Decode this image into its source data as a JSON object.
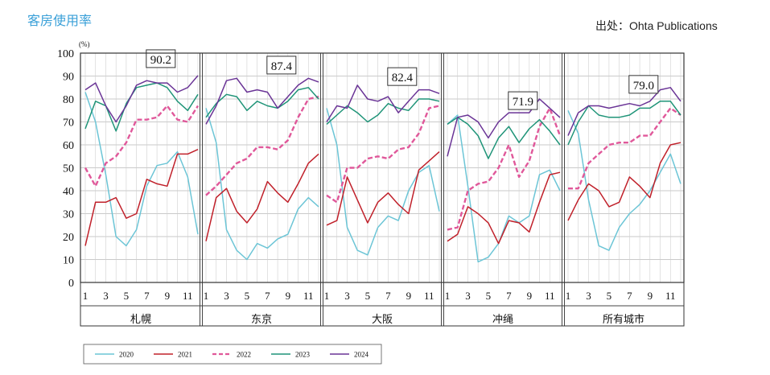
{
  "page": {
    "title": "客房使用率",
    "source": "出处：Ohta Publications"
  },
  "chart_data": {
    "type": "line",
    "unit_label": "(%)",
    "ylim": [
      0,
      100
    ],
    "yticks": [
      0,
      10,
      20,
      30,
      40,
      50,
      60,
      70,
      80,
      90,
      100
    ],
    "month_ticks": [
      "1",
      "3",
      "5",
      "7",
      "9",
      "11"
    ],
    "grid": true,
    "legend_placement": "bottom-left",
    "series_colors": {
      "2020": "#6cc5d6",
      "2021": "#c0202a",
      "2022": "#e0589a",
      "2023": "#1f9478",
      "2024": "#6a3496"
    },
    "series_styles": {
      "2022": "dashed"
    },
    "legend": [
      "2020",
      "2021",
      "2022",
      "2023",
      "2024"
    ],
    "panels": [
      {
        "name": "札幌",
        "highlight": "90.2",
        "series": [
          {
            "name": "2020",
            "values": [
              83,
              70,
              47,
              20,
              16,
              23,
              42,
              51,
              52,
              57,
              46,
              21
            ]
          },
          {
            "name": "2021",
            "values": [
              16,
              35,
              35,
              37,
              28,
              30,
              45,
              43,
              42,
              56,
              56,
              58
            ]
          },
          {
            "name": "2022",
            "values": [
              50,
              42,
              52,
              55,
              61,
              71,
              71,
              72,
              77,
              71,
              70,
              77
            ]
          },
          {
            "name": "2023",
            "values": [
              67,
              79,
              77,
              66,
              78,
              85,
              86,
              87,
              85,
              79,
              75,
              82
            ]
          },
          {
            "name": "2024",
            "values": [
              84,
              87,
              77,
              70,
              77,
              86,
              88,
              87,
              87,
              83,
              85,
              90.2
            ]
          }
        ]
      },
      {
        "name": "东京",
        "highlight": "87.4",
        "series": [
          {
            "name": "2020",
            "values": [
              76,
              61,
              23,
              14,
              10,
              17,
              15,
              19,
              21,
              32,
              37,
              33
            ]
          },
          {
            "name": "2021",
            "values": [
              18,
              37,
              41,
              31,
              26,
              32,
              44,
              39,
              35,
              43,
              52,
              56
            ]
          },
          {
            "name": "2022",
            "values": [
              38,
              42,
              47,
              52,
              54,
              59,
              59,
              58,
              62,
              72,
              80,
              81
            ]
          },
          {
            "name": "2023",
            "values": [
              72,
              78,
              82,
              81,
              75,
              79,
              77,
              76,
              79,
              84,
              85,
              80
            ]
          },
          {
            "name": "2024",
            "values": [
              69,
              77,
              88,
              89,
              83,
              84,
              83,
              76,
              81,
              86,
              89,
              87.4
            ]
          }
        ]
      },
      {
        "name": "大阪",
        "highlight": "82.4",
        "series": [
          {
            "name": "2020",
            "values": [
              76,
              60,
              24,
              14,
              12,
              24,
              29,
              27,
              40,
              48,
              51,
              31
            ]
          },
          {
            "name": "2021",
            "values": [
              25,
              27,
              46,
              36,
              26,
              35,
              39,
              34,
              30,
              49,
              53,
              57
            ]
          },
          {
            "name": "2022",
            "values": [
              38,
              35,
              50,
              50,
              54,
              55,
              54,
              58,
              59,
              65,
              76,
              77
            ]
          },
          {
            "name": "2023",
            "values": [
              69,
              73,
              77,
              74,
              70,
              73,
              78,
              76,
              75,
              80,
              80,
              79
            ]
          },
          {
            "name": "2024",
            "values": [
              70,
              77,
              76,
              86,
              80,
              79,
              81,
              74,
              79,
              84,
              84,
              82.4
            ]
          }
        ]
      },
      {
        "name": "冲绳",
        "highlight": "71.9",
        "series": [
          {
            "name": "2020",
            "values": [
              69,
              73,
              42,
              9,
              11,
              17,
              29,
              26,
              29,
              47,
              49,
              40
            ]
          },
          {
            "name": "2021",
            "values": [
              18,
              21,
              33,
              30,
              26,
              17,
              27,
              26,
              22,
              35,
              47,
              48
            ]
          },
          {
            "name": "2022",
            "values": [
              23,
              24,
              40,
              43,
              44,
              50,
              60,
              46,
              53,
              68,
              76,
              64
            ]
          },
          {
            "name": "2023",
            "values": [
              69,
              72,
              69,
              64,
              54,
              63,
              68,
              61,
              67,
              71,
              66,
              60
            ]
          },
          {
            "name": "2024",
            "values": [
              55,
              72,
              73,
              70,
              63,
              70,
              74,
              74,
              74,
              80,
              76,
              71.9
            ]
          }
        ]
      },
      {
        "name": "所有城市",
        "highlight": "79.0",
        "series": [
          {
            "name": "2020",
            "values": [
              75,
              65,
              36,
              16,
              14,
              24,
              30,
              34,
              40,
              48,
              56,
              43
            ]
          },
          {
            "name": "2021",
            "values": [
              27,
              36,
              43,
              40,
              33,
              35,
              46,
              42,
              37,
              52,
              60,
              61
            ]
          },
          {
            "name": "2022",
            "values": [
              41,
              41,
              52,
              56,
              60,
              61,
              61,
              64,
              64,
              70,
              76,
              73
            ]
          },
          {
            "name": "2023",
            "values": [
              60,
              70,
              77,
              73,
              72,
              72,
              73,
              76,
              76,
              79,
              79,
              73
            ]
          },
          {
            "name": "2024",
            "values": [
              64,
              74,
              77,
              77,
              76,
              77,
              78,
              77,
              79,
              84,
              85,
              79.0
            ]
          }
        ]
      }
    ]
  }
}
